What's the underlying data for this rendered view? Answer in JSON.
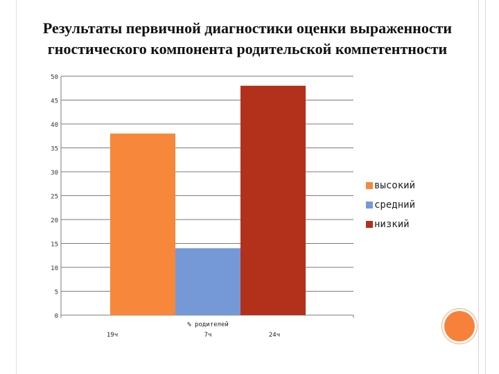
{
  "title": {
    "line1": "Результаты первичной диагностики оценки выраженности",
    "line2": "гностического компонента родительской компетентности"
  },
  "chart_data": {
    "type": "bar",
    "ylim": [
      0,
      50
    ],
    "yticks": [
      "0",
      "5",
      "10",
      "15",
      "20",
      "25",
      "30",
      "35",
      "40",
      "45",
      "50"
    ],
    "grid": true,
    "xlabel": "% родителей",
    "legend_position": "right",
    "series": [
      {
        "name": "высокий",
        "value": 38,
        "color": "#f7873a",
        "count_label": "19ч"
      },
      {
        "name": "средний",
        "value": 14,
        "color": "#7599d6",
        "count_label": "7ч"
      },
      {
        "name": "низкий",
        "value": 48,
        "color": "#b3301a",
        "count_label": "24ч"
      }
    ]
  }
}
